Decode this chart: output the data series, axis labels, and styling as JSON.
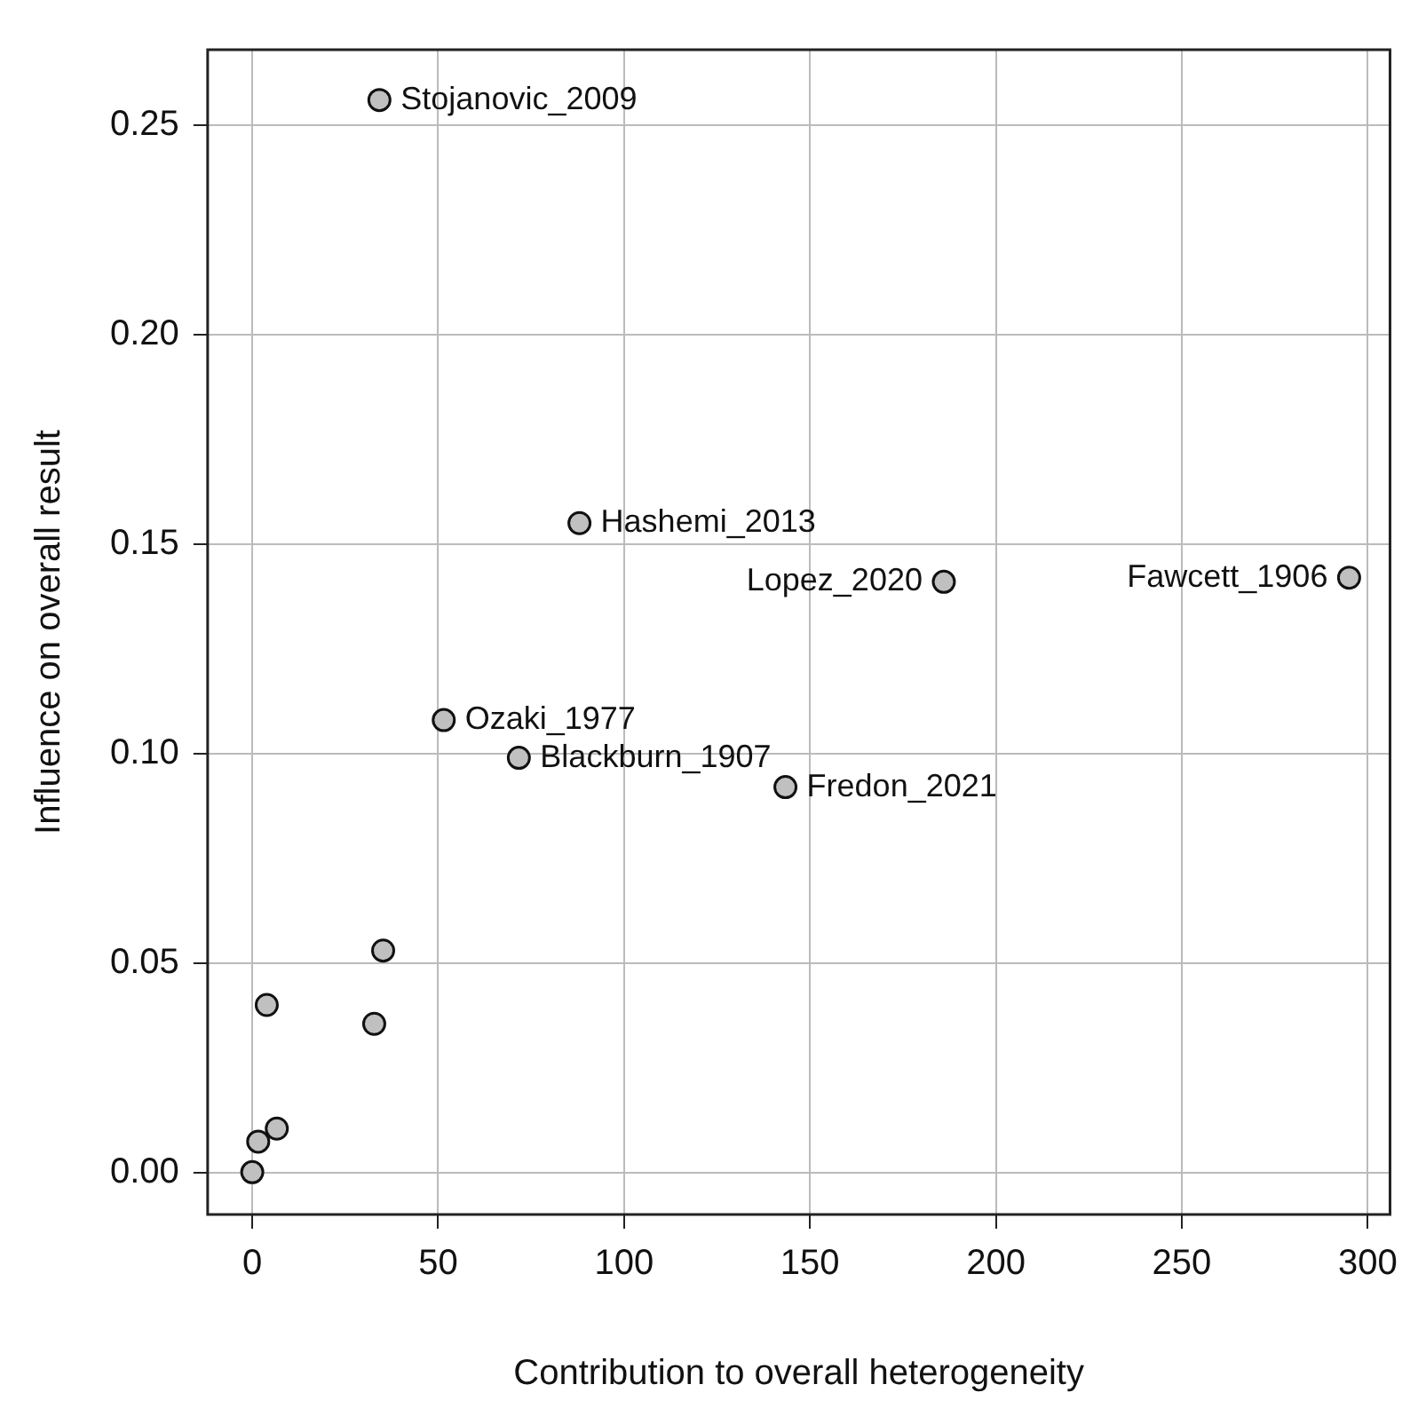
{
  "chart_data": {
    "type": "scatter",
    "xlabel": "Contribution to overall heterogeneity",
    "ylabel": "Influence on overall result",
    "x": [
      34.2,
      88,
      186,
      295,
      51.5,
      71.7,
      143.4,
      35.2,
      3.9,
      32.8,
      6.6,
      1.6,
      0
    ],
    "series": [
      {
        "color": "#c0c0c0",
        "values": [
          0.256,
          0.155,
          0.141,
          0.142,
          0.108,
          0.099,
          0.092,
          0.053,
          0.04,
          0.0355,
          0.0105,
          0.0074,
          0.0001
        ]
      }
    ],
    "xlim": [
      -12,
      306
    ],
    "ylim": [
      -0.01,
      0.268
    ],
    "xticks": [
      0,
      50,
      100,
      150,
      200,
      250,
      300
    ],
    "yticks": [
      {
        "value": 0,
        "label": "0.00"
      },
      {
        "value": 0.05,
        "label": "0.05"
      },
      {
        "value": 0.1,
        "label": "0.10"
      },
      {
        "value": 0.15,
        "label": "0.15"
      },
      {
        "value": 0.2,
        "label": "0.20"
      },
      {
        "value": 0.25,
        "label": "0.25"
      }
    ],
    "grid": true,
    "marker": "circle",
    "legend": false,
    "annotations": [
      {
        "text": "Stojanovic_2009",
        "x": 34.2,
        "y": 0.256
      },
      {
        "text": "Hashemi_2013",
        "x": 88,
        "y": 0.155
      },
      {
        "text": "Lopez_2020",
        "x": 186,
        "y": 0.141
      },
      {
        "text": "Fawcett_1906",
        "x": 295,
        "y": 0.142
      },
      {
        "text": "Ozaki_1977",
        "x": 51.5,
        "y": 0.108
      },
      {
        "text": "Blackburn_1907",
        "x": 71.7,
        "y": 0.099
      },
      {
        "text": "Fredon_2021",
        "x": 143.4,
        "y": 0.092
      }
    ]
  }
}
